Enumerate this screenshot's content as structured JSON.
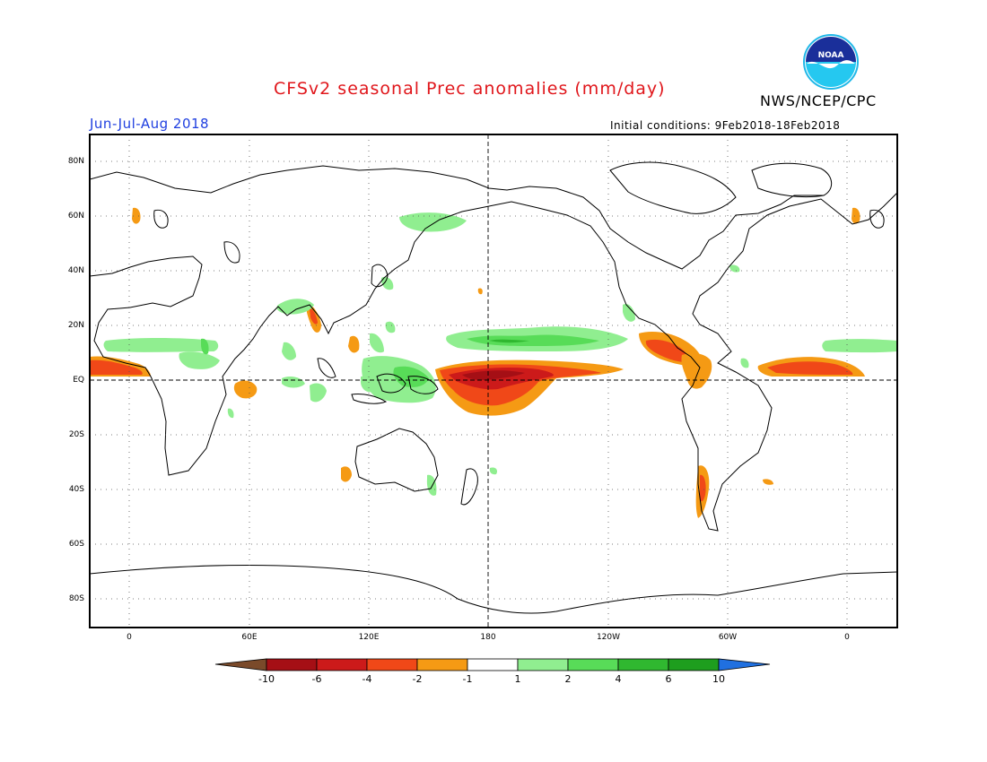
{
  "header": {
    "title": "CFSv2 seasonal Prec anomalies (mm/day)",
    "period": "Jun-Jul-Aug 2018",
    "agency": "NWS/NCEP/CPC",
    "initial_conditions": "Initial conditions: 9Feb2018-18Feb2018",
    "logo_text": "NOAA"
  },
  "map": {
    "lat_ticks": [
      "80N",
      "60N",
      "40N",
      "20N",
      "EQ",
      "20S",
      "40S",
      "60S",
      "80S"
    ],
    "lon_ticks": [
      "0",
      "60E",
      "120E",
      "180",
      "120W",
      "60W",
      "0"
    ]
  },
  "colorbar": {
    "labels": [
      "-10",
      "-6",
      "-4",
      "-2",
      "-1",
      "1",
      "2",
      "4",
      "6",
      "10"
    ],
    "colors": [
      "#7a4a2a",
      "#a50f15",
      "#cc1a1a",
      "#f04818",
      "#f59a14",
      "#ffffff",
      "#90ee90",
      "#58dc58",
      "#30b830",
      "#1e9e1e",
      "#2070e0"
    ]
  }
}
